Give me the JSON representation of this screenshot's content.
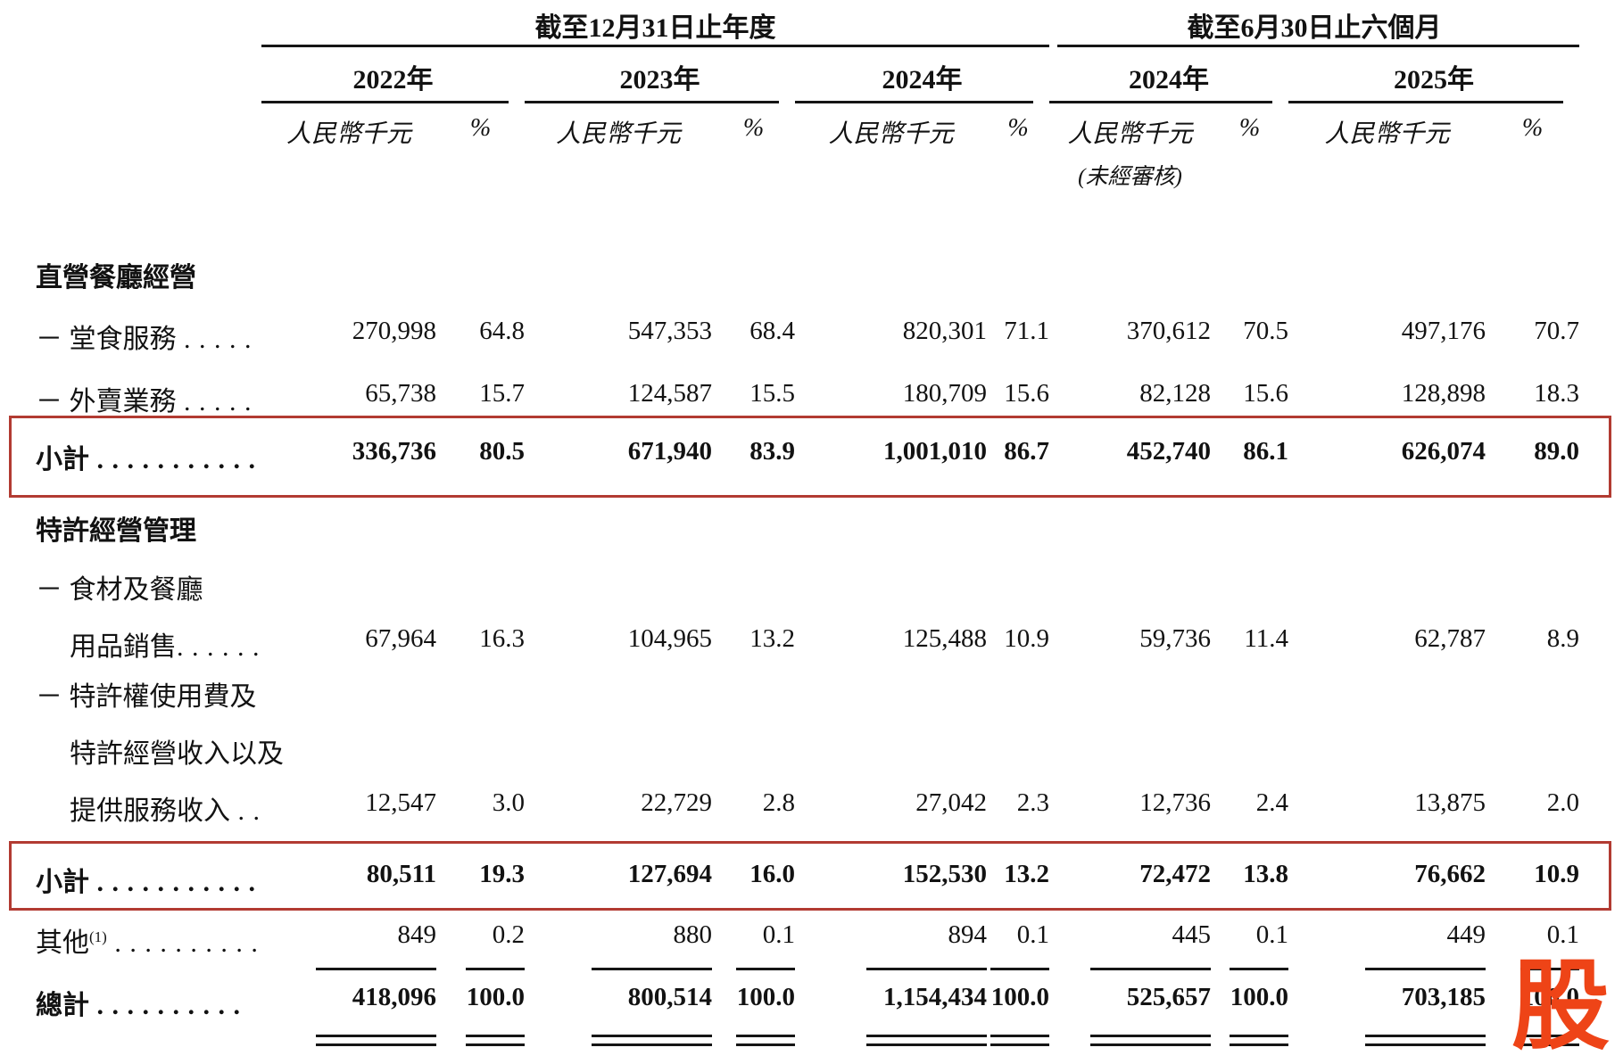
{
  "table": {
    "period_groups": [
      {
        "title": "截至12月31日止年度"
      },
      {
        "title": "截至6月30日止六個月"
      }
    ],
    "year_headers": [
      "2022年",
      "2023年",
      "2024年",
      "2024年",
      "2025年"
    ],
    "columns": {
      "unit_header": "人民幣千元",
      "percent_header": "%",
      "unaudited_note": "(未經審核)"
    },
    "rows": [
      {
        "kind": "section",
        "label": "直營餐廳經營"
      },
      {
        "kind": "data",
        "label": "－ 堂食服務",
        "dots": " . . . . .",
        "values": [
          "270,998",
          "64.8",
          "547,353",
          "68.4",
          "820,301",
          "71.1",
          "370,612",
          "70.5",
          "497,176",
          "70.7"
        ]
      },
      {
        "kind": "data",
        "label": "－ 外賣業務",
        "dots": " . . . . .",
        "values": [
          "65,738",
          "15.7",
          "124,587",
          "15.5",
          "180,709",
          "15.6",
          "82,128",
          "15.6",
          "128,898",
          "18.3"
        ]
      },
      {
        "kind": "subtotal",
        "label": "小計",
        "dots": " . . . . . . . . . . .",
        "values": [
          "336,736",
          "80.5",
          "671,940",
          "83.9",
          "1,001,010",
          "86.7",
          "452,740",
          "86.1",
          "626,074",
          "89.0"
        ]
      },
      {
        "kind": "section",
        "label": "特許經營管理"
      },
      {
        "kind": "cont",
        "label": "－ 食材及餐廳"
      },
      {
        "kind": "data",
        "indent": true,
        "label": "用品銷售",
        "dots": ". . . . . .",
        "values": [
          "67,964",
          "16.3",
          "104,965",
          "13.2",
          "125,488",
          "10.9",
          "59,736",
          "11.4",
          "62,787",
          "8.9"
        ]
      },
      {
        "kind": "cont",
        "label": "－ 特許權使用費及"
      },
      {
        "kind": "cont",
        "indent": true,
        "label": "特許經營收入以及"
      },
      {
        "kind": "data",
        "indent": true,
        "label": "提供服務收入",
        "dots": " . .",
        "values": [
          "12,547",
          "3.0",
          "22,729",
          "2.8",
          "27,042",
          "2.3",
          "12,736",
          "2.4",
          "13,875",
          "2.0"
        ]
      },
      {
        "kind": "subtotal",
        "label": "小計",
        "dots": " . . . . . . . . . . .",
        "values": [
          "80,511",
          "19.3",
          "127,694",
          "16.0",
          "152,530",
          "13.2",
          "72,472",
          "13.8",
          "76,662",
          "10.9"
        ]
      },
      {
        "kind": "data",
        "label": "其他",
        "sup": "(1)",
        "dots": " . . . . . . . . . .",
        "values": [
          "849",
          "0.2",
          "880",
          "0.1",
          "894",
          "0.1",
          "445",
          "0.1",
          "449",
          "0.1"
        ]
      },
      {
        "kind": "total",
        "label": "總計",
        "dots": " . . . . . . . . . .",
        "values": [
          "418,096",
          "100.0",
          "800,514",
          "100.0",
          "1,154,434",
          "100.0",
          "525,657",
          "100.0",
          "703,185",
          "100.0"
        ]
      }
    ]
  },
  "highlight_color": "#b23b32",
  "watermark": {
    "text": "股",
    "color": "#ee4417"
  }
}
